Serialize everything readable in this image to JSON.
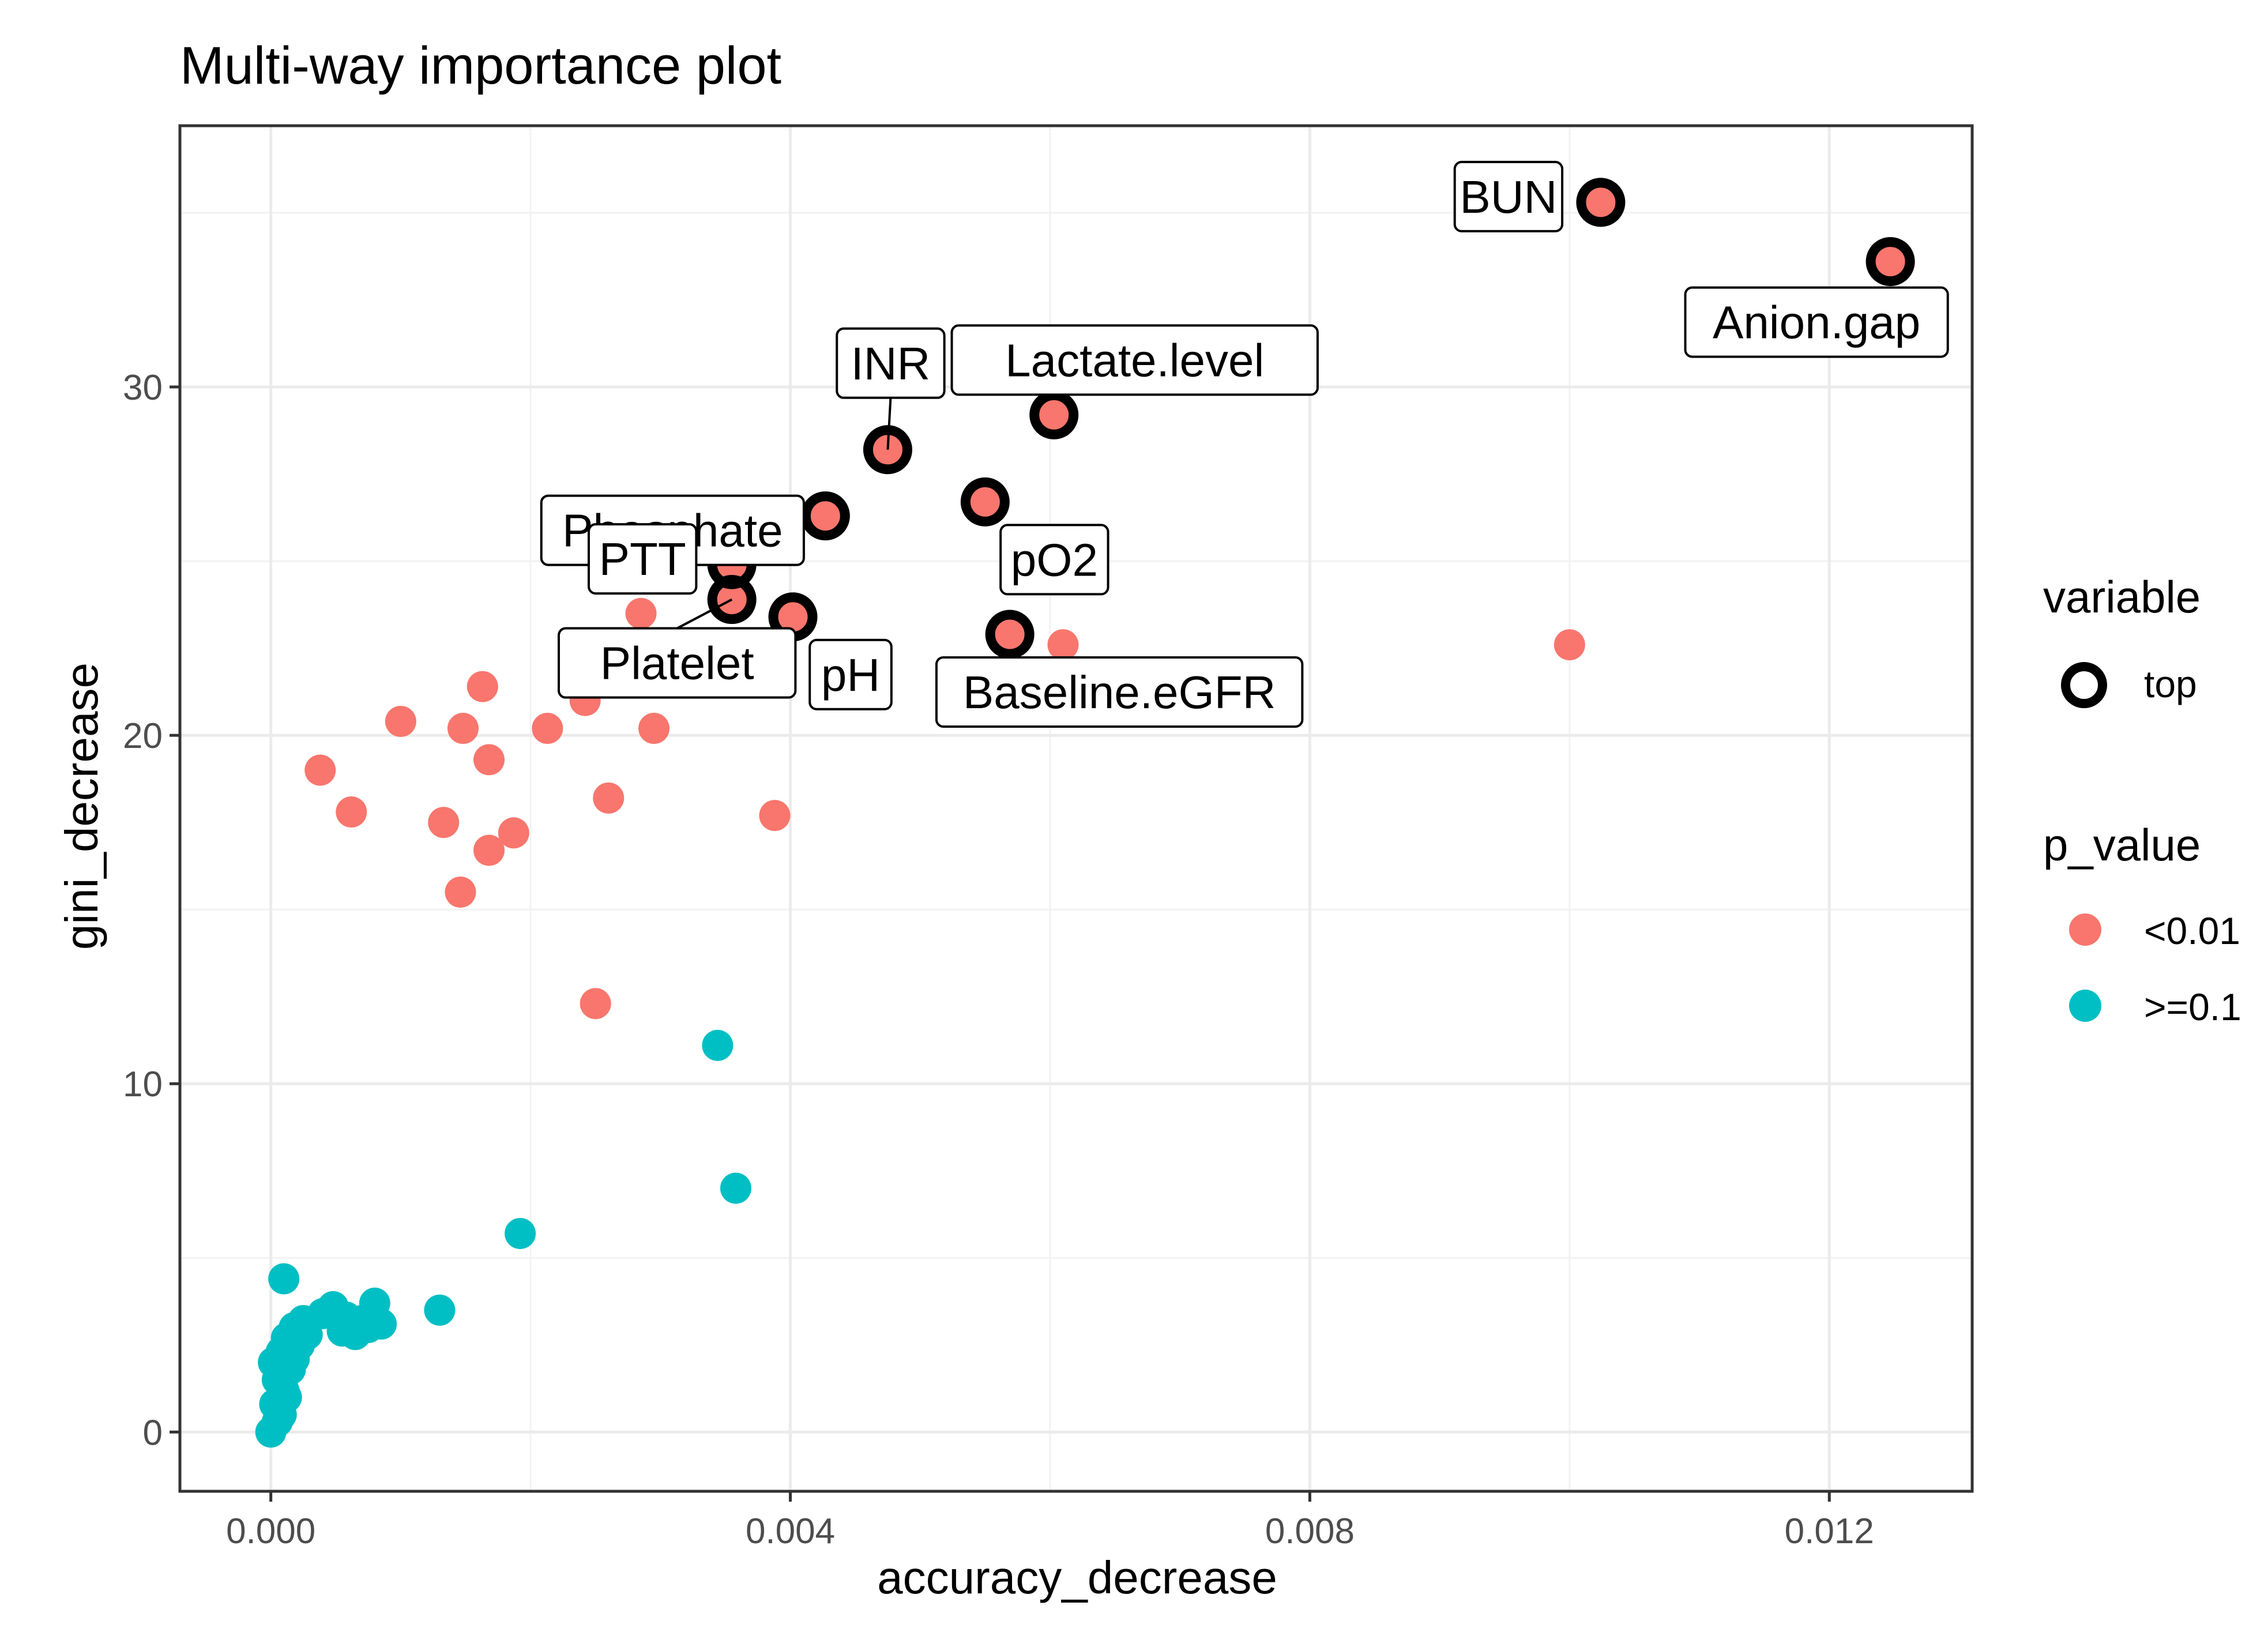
{
  "chart_data": {
    "type": "scatter",
    "title": "Multi-way importance plot",
    "xlabel": "accuracy_decrease",
    "ylabel": "gini_decrease",
    "xlim": [
      -0.0007,
      0.0131
    ],
    "ylim": [
      -1.7,
      37.5
    ],
    "xticks": [
      0.0,
      0.004,
      0.008,
      0.012
    ],
    "xtick_labels": [
      "0.000",
      "0.004",
      "0.008",
      "0.012"
    ],
    "yticks": [
      0,
      10,
      20,
      30
    ],
    "ytick_labels": [
      "0",
      "10",
      "20",
      "30"
    ],
    "grid": true,
    "legend_position": "right",
    "colors": {
      "lt001": "#F8766D",
      "ge01": "#00BFC4",
      "top_ring": "#000000",
      "panel_border": "#333333"
    },
    "legend": {
      "variable": {
        "title": "variable",
        "entries": [
          "top"
        ]
      },
      "p_value": {
        "title": "p_value",
        "entries": [
          "<0.01",
          ">=0.1"
        ]
      }
    },
    "series": [
      {
        "name": "<0.01",
        "points": [
          [
            0.01024,
            35.3
          ],
          [
            0.01247,
            33.6
          ],
          [
            0.00603,
            29.2
          ],
          [
            0.00475,
            28.2
          ],
          [
            0.0055,
            26.7
          ],
          [
            0.00427,
            26.3
          ],
          [
            0.00355,
            24.9
          ],
          [
            0.00355,
            23.9
          ],
          [
            0.00402,
            23.4
          ],
          [
            0.00569,
            22.9
          ],
          [
            0.0061,
            22.6
          ],
          [
            0.01,
            22.6
          ],
          [
            0.00285,
            23.5
          ],
          [
            0.00242,
            21.0
          ],
          [
            0.00295,
            20.2
          ],
          [
            0.00163,
            21.4
          ],
          [
            0.001,
            20.4
          ],
          [
            0.00148,
            20.2
          ],
          [
            0.00213,
            20.2
          ],
          [
            0.00038,
            19.0
          ],
          [
            0.00168,
            19.3
          ],
          [
            0.00062,
            17.8
          ],
          [
            0.00133,
            17.5
          ],
          [
            0.0026,
            18.2
          ],
          [
            0.00388,
            17.7
          ],
          [
            0.00187,
            17.2
          ],
          [
            0.00168,
            16.7
          ],
          [
            0.00146,
            15.5
          ],
          [
            0.0025,
            12.3
          ]
        ]
      },
      {
        "name": ">=0.1",
        "points": [
          [
            0.00344,
            11.1
          ],
          [
            0.00358,
            7.0
          ],
          [
            0.00192,
            5.7
          ],
          [
            0.0013,
            3.5
          ],
          [
            0.0001,
            4.4
          ],
          [
            2e-05,
            2.0
          ],
          [
            5e-05,
            1.5
          ],
          [
            8e-05,
            2.3
          ],
          [
            0.00012,
            2.7
          ],
          [
            0.00018,
            3.0
          ],
          [
            0.00025,
            3.2
          ],
          [
            0.0004,
            3.4
          ],
          [
            0.00048,
            3.6
          ],
          [
            0.00058,
            3.3
          ],
          [
            0.00055,
            2.9
          ],
          [
            0.0007,
            3.2
          ],
          [
            0.0008,
            3.7
          ],
          [
            0.00085,
            3.1
          ],
          [
            0.00022,
            2.5
          ],
          [
            0.00015,
            1.8
          ],
          [
            0.0001,
            1.2
          ],
          [
            3e-05,
            0.8
          ],
          [
            8e-05,
            0.5
          ],
          [
            0.0,
            0.0
          ],
          [
            5e-05,
            0.3
          ],
          [
            0.00012,
            1.0
          ],
          [
            0.00018,
            2.1
          ],
          [
            0.00028,
            2.8
          ],
          [
            0.00065,
            2.8
          ],
          [
            0.00075,
            3.0
          ]
        ]
      }
    ],
    "top_variables": [
      {
        "label": "BUN",
        "x": 0.01024,
        "y": 35.3,
        "pos": "left"
      },
      {
        "label": "Anion.gap",
        "x": 0.01247,
        "y": 33.6,
        "pos": "below-left"
      },
      {
        "label": "Lactate.level",
        "x": 0.00603,
        "y": 29.2,
        "pos": "above"
      },
      {
        "label": "INR",
        "x": 0.00475,
        "y": 28.2,
        "pos": "above-leader"
      },
      {
        "label": "pO2",
        "x": 0.0055,
        "y": 26.7,
        "pos": "below-right"
      },
      {
        "label": "Phosphate",
        "x": 0.00427,
        "y": 26.3,
        "pos": "above-left"
      },
      {
        "label": "PTT",
        "x": 0.00355,
        "y": 24.9,
        "pos": "left"
      },
      {
        "label": "Platelet",
        "x": 0.00355,
        "y": 23.9,
        "pos": "below-left-leader"
      },
      {
        "label": "pH",
        "x": 0.00402,
        "y": 23.4,
        "pos": "below-right"
      },
      {
        "label": "Baseline.eGFR",
        "x": 0.00569,
        "y": 22.9,
        "pos": "below"
      }
    ]
  }
}
